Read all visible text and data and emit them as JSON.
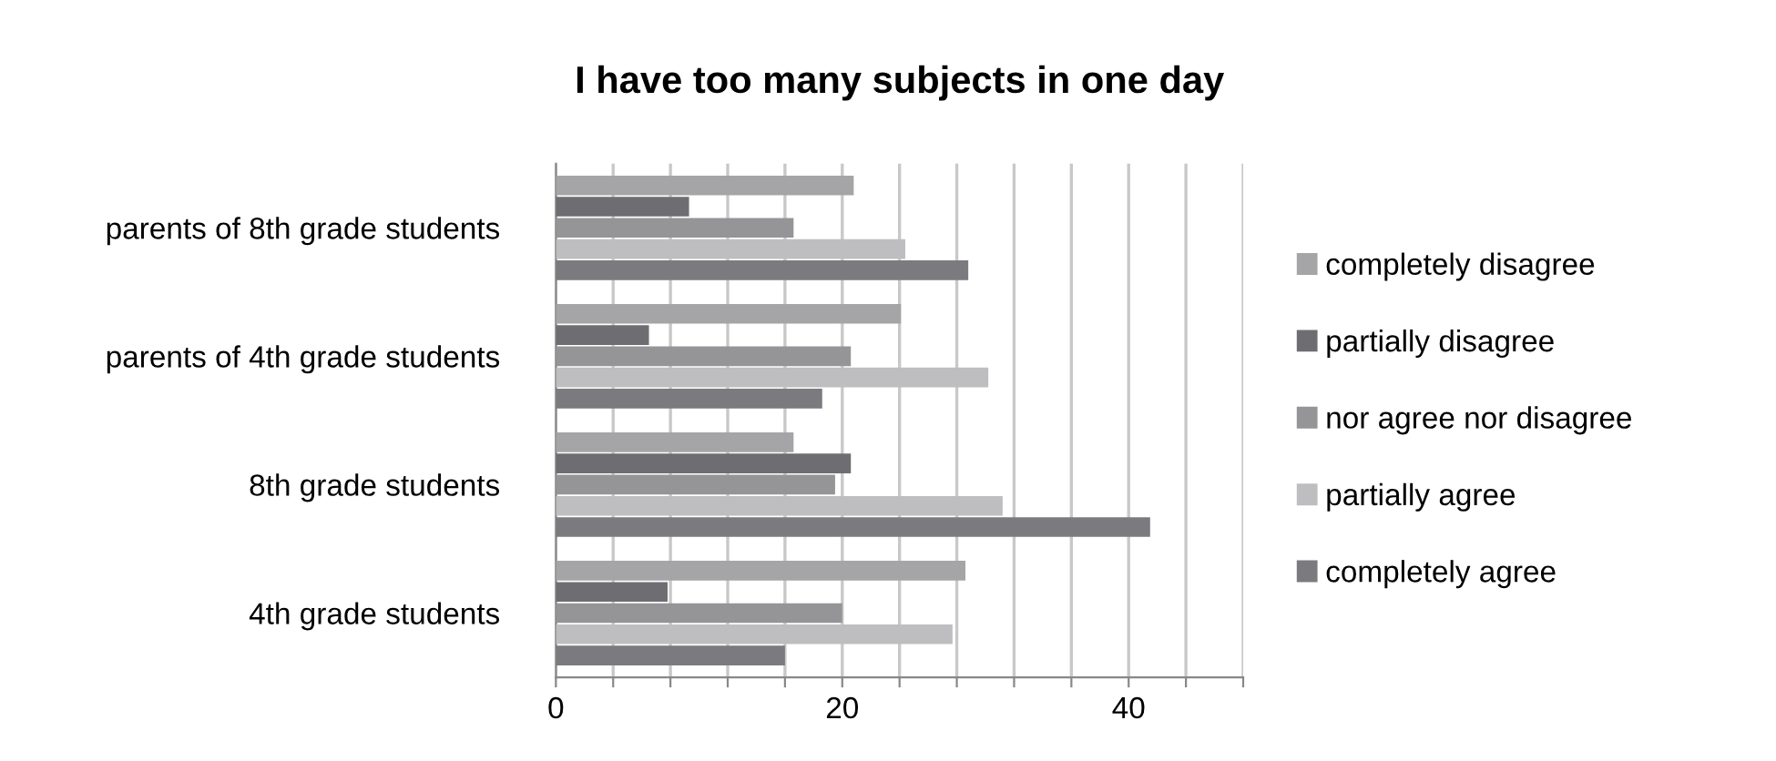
{
  "chart_data": {
    "type": "bar",
    "orientation": "horizontal",
    "title": "I have too many subjects in one day",
    "categories": [
      "parents of 8th grade students",
      "parents of 4th grade students",
      "8th grade students",
      "4th grade students"
    ],
    "series": [
      {
        "name": "completely disagree",
        "color": "#a5a5a7",
        "values": [
          20.8,
          24.1,
          16.6,
          28.6
        ]
      },
      {
        "name": "partially disagree",
        "color": "#6e6e72",
        "values": [
          9.3,
          6.5,
          20.6,
          7.8
        ]
      },
      {
        "name": "nor agree nor disagree",
        "color": "#959598",
        "values": [
          16.6,
          20.6,
          19.5,
          20.0
        ]
      },
      {
        "name": "partially agree",
        "color": "#bebec1",
        "values": [
          24.4,
          30.2,
          31.2,
          27.7
        ]
      },
      {
        "name": "completely agree",
        "color": "#7b7b7f",
        "values": [
          28.8,
          18.6,
          41.5,
          16.0
        ]
      }
    ],
    "xlim": [
      0,
      48
    ],
    "xticks": [
      0,
      {
        "value": 4,
        "label": null
      },
      {
        "value": 8,
        "label": null
      },
      {
        "value": 12,
        "label": null
      },
      {
        "value": 16,
        "label": null
      },
      20,
      {
        "value": 24,
        "label": null
      },
      {
        "value": 28,
        "label": null
      },
      {
        "value": 32,
        "label": null
      },
      {
        "value": 36,
        "label": null
      },
      40,
      {
        "value": 44,
        "label": null
      },
      {
        "value": 48,
        "label": null
      }
    ],
    "grid": "x",
    "legend": "right"
  }
}
